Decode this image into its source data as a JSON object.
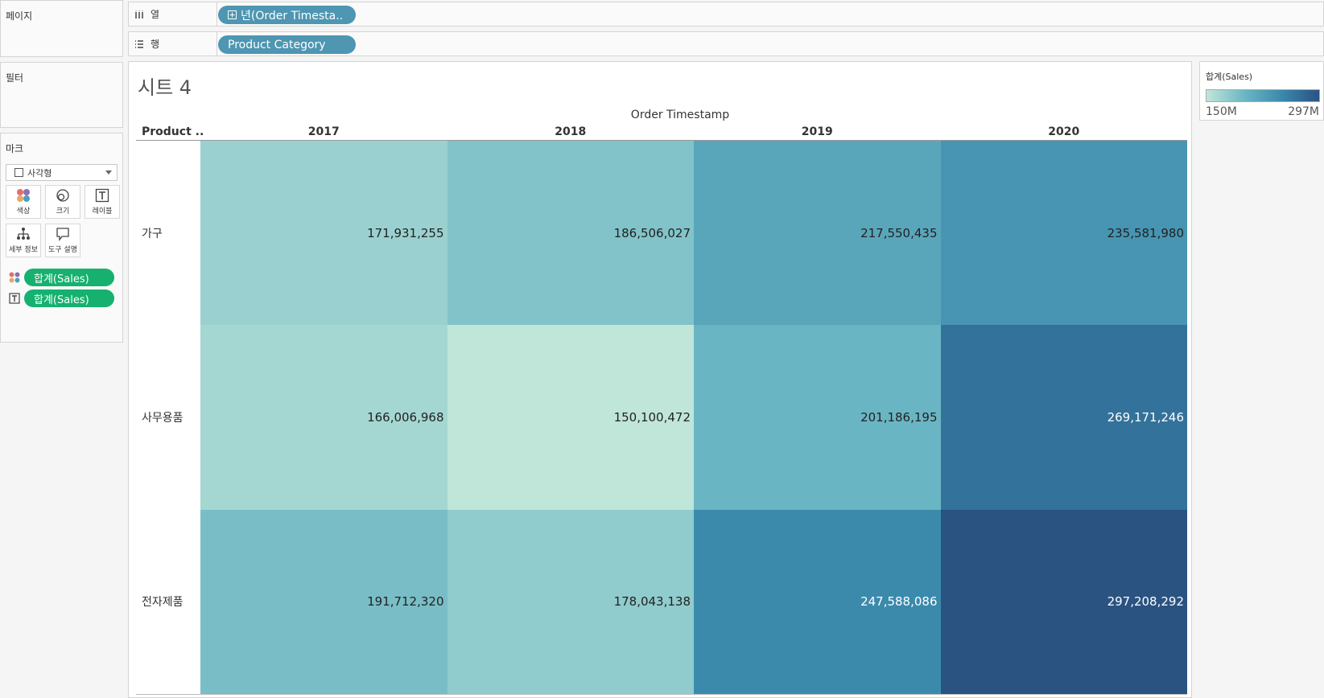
{
  "panels": {
    "pages_title": "페이지",
    "filters_title": "필터",
    "marks_title": "마크"
  },
  "marks": {
    "type_label": "사각형",
    "buttons": {
      "color": "색상",
      "size": "크기",
      "label": "레이블",
      "detail": "세부 정보",
      "tooltip": "도구 설명"
    },
    "pills": [
      "합계(Sales)",
      "합계(Sales)"
    ]
  },
  "shelves": {
    "columns_label": "열",
    "columns_pill": "년(Order Timesta..",
    "rows_label": "행",
    "rows_pill": "Product Category"
  },
  "worksheet": {
    "title": "시트 4",
    "row_header_label": "Product ..",
    "column_axis_title": "Order Timestamp"
  },
  "legend": {
    "title": "합계(Sales)",
    "min_label": "150M",
    "max_label": "297M"
  },
  "chart_data": {
    "type": "heatmap",
    "title": "시트 4",
    "xlabel": "Order Timestamp",
    "ylabel": "Product ..",
    "x": [
      "2017",
      "2018",
      "2019",
      "2020"
    ],
    "y": [
      "가구",
      "사무용품",
      "전자제품"
    ],
    "values": [
      [
        171931255,
        186506027,
        217550435,
        235581980
      ],
      [
        166006968,
        150100472,
        201186195,
        269171246
      ],
      [
        191712320,
        178043138,
        247588086,
        297208292
      ]
    ],
    "labels": [
      [
        "171,931,255",
        "186,506,027",
        "217,550,435",
        "235,581,980"
      ],
      [
        "166,006,968",
        "150,100,472",
        "201,186,195",
        "269,171,246"
      ],
      [
        "191,712,320",
        "178,043,138",
        "247,588,086",
        "297,208,292"
      ]
    ],
    "color_range": [
      150100472,
      297208292
    ],
    "colors": [
      "#bfe6d9",
      "#6cb7c4",
      "#3a89ac",
      "#2a5382"
    ]
  }
}
